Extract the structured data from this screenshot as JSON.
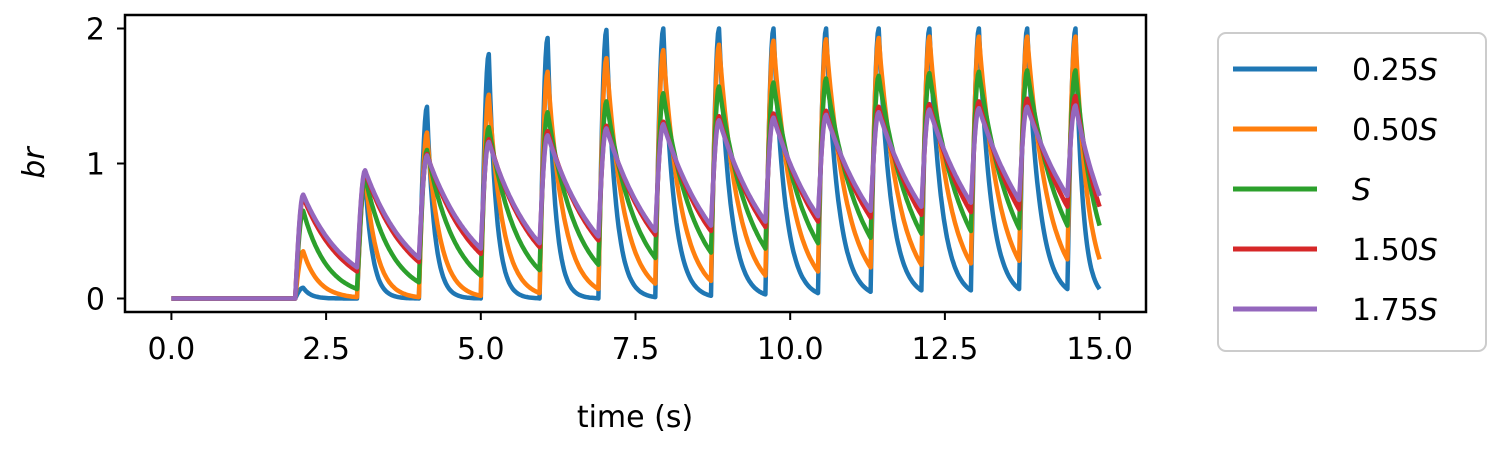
{
  "chart_data": {
    "type": "line",
    "title": "",
    "xlabel": "time (s)",
    "ylabel": "br",
    "xlim": [
      -0.75,
      15.75
    ],
    "ylim": [
      -0.1,
      2.1
    ],
    "xticks": [
      0.0,
      2.5,
      5.0,
      7.5,
      10.0,
      12.5,
      15.0
    ],
    "xtick_labels": [
      "0.0",
      "2.5",
      "5.0",
      "7.5",
      "10.0",
      "12.5",
      "15.0"
    ],
    "yticks": [
      0,
      1,
      2
    ],
    "ytick_labels": [
      "0",
      "1",
      "2"
    ],
    "grid": false,
    "legend_position": "outside-right",
    "stimulus_onsets_s": [
      2.0,
      3.0,
      4.0,
      5.0,
      5.95,
      6.9,
      7.82,
      8.72,
      9.6,
      10.45,
      11.3,
      12.12,
      12.92,
      13.7,
      14.48
    ],
    "series": [
      {
        "name": "0.25S",
        "label_main": "0.25",
        "label_italic": "S",
        "color": "#1f77b4",
        "peaks": [
          0.08,
          0.9,
          1.42,
          1.81,
          1.93,
          1.99,
          2.0,
          2.0,
          2.0,
          2.0,
          2.0,
          2.0,
          2.0,
          2.0,
          2.0
        ],
        "troughs_before": [
          0.0,
          0.0,
          0.0,
          0.0,
          0.0,
          0.0,
          0.01,
          0.02,
          0.03,
          0.04,
          0.05,
          0.06,
          0.06,
          0.07,
          0.07
        ]
      },
      {
        "name": "0.50S",
        "label_main": "0.50",
        "label_italic": "S",
        "color": "#ff7f0e",
        "peaks": [
          0.35,
          0.92,
          1.23,
          1.51,
          1.68,
          1.78,
          1.84,
          1.88,
          1.91,
          1.92,
          1.93,
          1.94,
          1.94,
          1.94,
          1.94
        ],
        "troughs_before": [
          0.0,
          0.01,
          0.01,
          0.02,
          0.04,
          0.07,
          0.11,
          0.13,
          0.17,
          0.2,
          0.23,
          0.25,
          0.26,
          0.28,
          0.29
        ]
      },
      {
        "name": "S",
        "label_main": "",
        "label_italic": "S",
        "color": "#2ca02c",
        "peaks": [
          0.65,
          0.9,
          1.1,
          1.27,
          1.38,
          1.46,
          1.52,
          1.57,
          1.6,
          1.63,
          1.65,
          1.67,
          1.68,
          1.69,
          1.69
        ],
        "troughs_before": [
          0.0,
          0.07,
          0.12,
          0.17,
          0.21,
          0.25,
          0.3,
          0.34,
          0.37,
          0.41,
          0.45,
          0.48,
          0.5,
          0.52,
          0.54
        ]
      },
      {
        "name": "1.50S",
        "label_main": "1.50",
        "label_italic": "S",
        "color": "#d62728",
        "peaks": [
          0.75,
          0.94,
          1.07,
          1.18,
          1.24,
          1.28,
          1.31,
          1.35,
          1.37,
          1.39,
          1.42,
          1.44,
          1.46,
          1.48,
          1.5
        ],
        "troughs_before": [
          0.0,
          0.2,
          0.27,
          0.33,
          0.38,
          0.43,
          0.47,
          0.5,
          0.53,
          0.57,
          0.6,
          0.62,
          0.64,
          0.66,
          0.68
        ]
      },
      {
        "name": "1.75S",
        "label_main": "1.75",
        "label_italic": "S",
        "color": "#9467bd",
        "peaks": [
          0.77,
          0.95,
          1.06,
          1.16,
          1.21,
          1.26,
          1.29,
          1.32,
          1.34,
          1.36,
          1.38,
          1.4,
          1.41,
          1.42,
          1.43
        ],
        "troughs_before": [
          0.0,
          0.23,
          0.3,
          0.37,
          0.41,
          0.46,
          0.5,
          0.54,
          0.57,
          0.61,
          0.65,
          0.68,
          0.71,
          0.73,
          0.76
        ]
      }
    ]
  }
}
